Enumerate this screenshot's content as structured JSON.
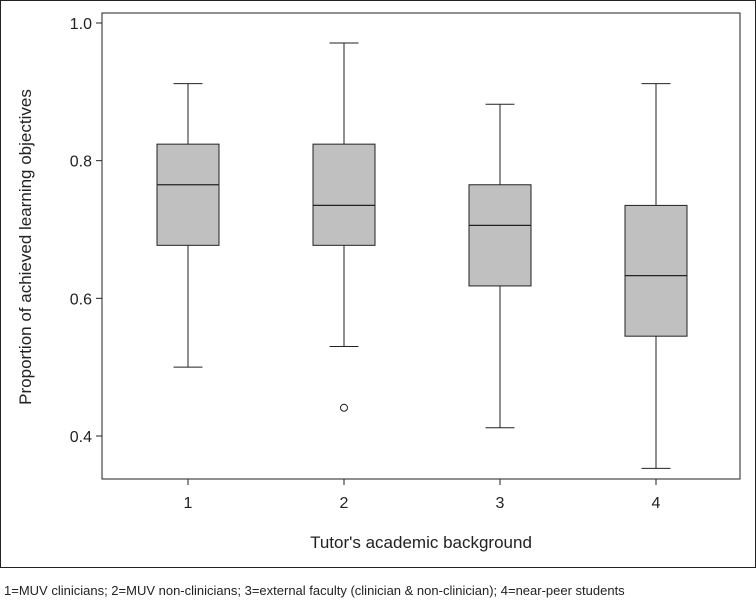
{
  "chart_data": {
    "type": "box",
    "title": "",
    "xlabel": "Tutor's academic background",
    "ylabel": "Proportion of achieved learning objectives",
    "categories": [
      "1",
      "2",
      "3",
      "4"
    ],
    "ylim": [
      0.34,
      1.02
    ],
    "yticks": [
      0.4,
      0.6,
      0.8,
      1.0
    ],
    "ytick_labels": [
      "0.4",
      "0.6",
      "0.8",
      "1.0"
    ],
    "grid": false,
    "box_color": "#c0c0c0",
    "line_color": "#222222",
    "boxes": [
      {
        "category": "1",
        "whisker_low": 0.5,
        "q1": 0.677,
        "median": 0.765,
        "q3": 0.824,
        "whisker_high": 0.912,
        "outliers": []
      },
      {
        "category": "2",
        "whisker_low": 0.53,
        "q1": 0.677,
        "median": 0.735,
        "q3": 0.824,
        "whisker_high": 0.971,
        "outliers": [
          0.441
        ]
      },
      {
        "category": "3",
        "whisker_low": 0.412,
        "q1": 0.618,
        "median": 0.706,
        "q3": 0.765,
        "whisker_high": 0.882,
        "outliers": []
      },
      {
        "category": "4",
        "whisker_low": 0.353,
        "q1": 0.545,
        "median": 0.633,
        "q3": 0.735,
        "whisker_high": 0.912,
        "outliers": []
      }
    ]
  },
  "caption": "1=MUV clinicians; 2=MUV non-clinicians; 3=external faculty (clinician & non-clinician); 4=near-peer students"
}
